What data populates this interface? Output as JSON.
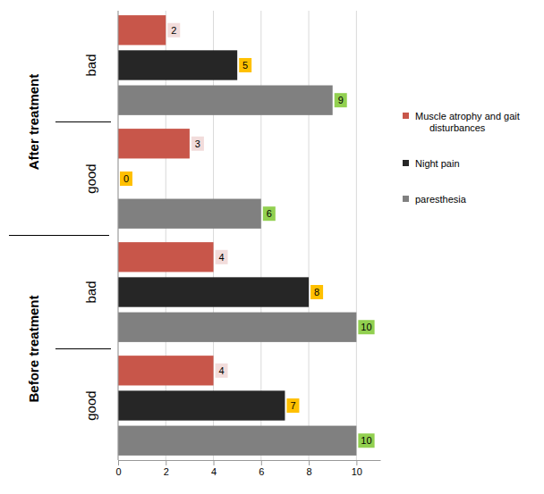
{
  "chart_data": {
    "type": "bar",
    "orientation": "horizontal",
    "categories": [
      "good",
      "bad",
      "good",
      "bad"
    ],
    "groups": [
      "Before treatment",
      "Before treatment",
      "After treatment",
      "After treatment"
    ],
    "series": [
      {
        "name": "Muscle atrophy and gait disturbances",
        "color": "#c8564a",
        "values": [
          4,
          4,
          3,
          2
        ]
      },
      {
        "name": "Night pain",
        "color": "#262626",
        "values": [
          7,
          8,
          0,
          5
        ]
      },
      {
        "name": "paresthesia",
        "color": "#808080",
        "values": [
          10,
          10,
          6,
          9
        ]
      }
    ],
    "xlim": [
      0,
      11
    ],
    "xticks": [
      0,
      2,
      4,
      6,
      8,
      10
    ],
    "grid": true,
    "data_labels": true,
    "legend": "right"
  }
}
